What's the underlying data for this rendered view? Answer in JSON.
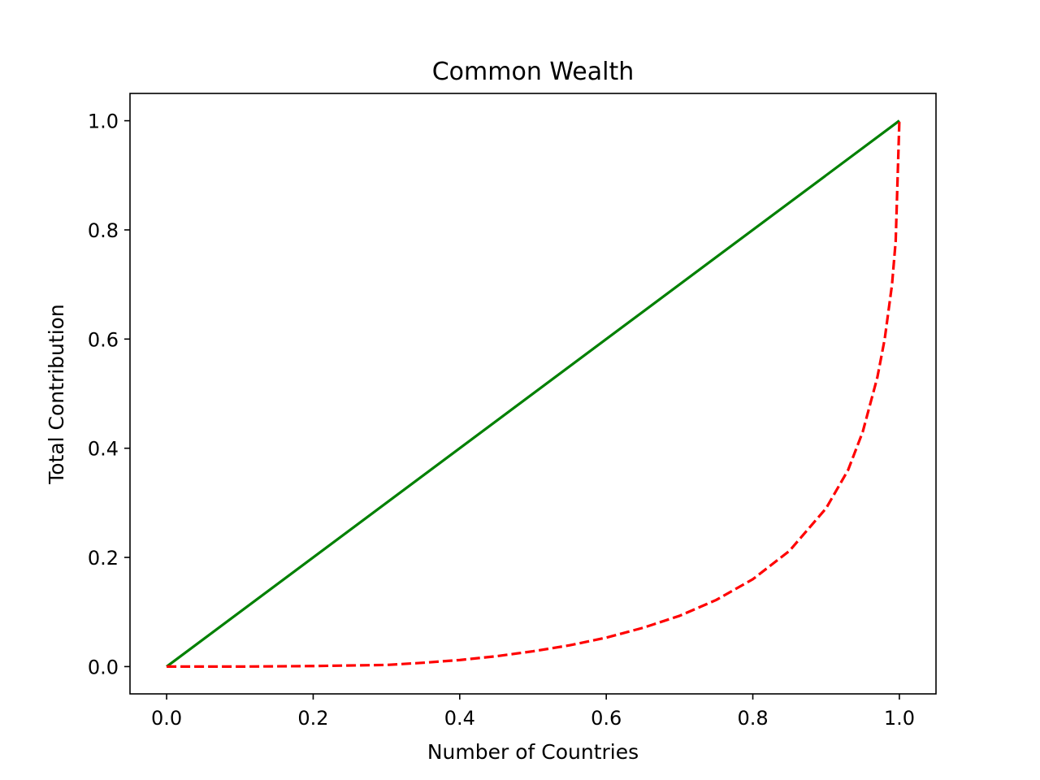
{
  "chart_data": {
    "type": "line",
    "title": "Common Wealth",
    "xlabel": "Number of Countries",
    "ylabel": "Total Contribution",
    "xlim": [
      -0.05,
      1.05
    ],
    "ylim": [
      -0.05,
      1.05
    ],
    "xticks": [
      "0.0",
      "0.2",
      "0.4",
      "0.6",
      "0.8",
      "1.0"
    ],
    "yticks": [
      "0.0",
      "0.2",
      "0.4",
      "0.6",
      "0.8",
      "1.0"
    ],
    "grid": false,
    "series": [
      {
        "style": "solid",
        "color": "#008000",
        "x": [
          0.0,
          1.0
        ],
        "y": [
          0.0,
          1.0
        ]
      },
      {
        "style": "dashed",
        "color": "#ff0000",
        "x": [
          0.0,
          0.1,
          0.2,
          0.3,
          0.35,
          0.4,
          0.45,
          0.5,
          0.55,
          0.6,
          0.65,
          0.7,
          0.75,
          0.8,
          0.85,
          0.9,
          0.93,
          0.95,
          0.97,
          0.98,
          0.99,
          0.995,
          1.0
        ],
        "y": [
          0.0,
          0.0,
          0.001,
          0.003,
          0.007,
          0.012,
          0.019,
          0.028,
          0.039,
          0.053,
          0.071,
          0.093,
          0.122,
          0.16,
          0.212,
          0.29,
          0.36,
          0.43,
          0.53,
          0.6,
          0.7,
          0.78,
          1.0
        ]
      }
    ]
  }
}
